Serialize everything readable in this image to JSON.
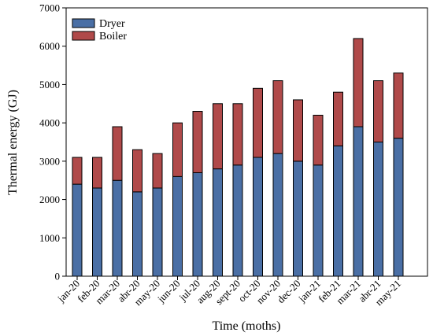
{
  "chart_data": {
    "type": "bar",
    "stacked": true,
    "categories": [
      "jan-20",
      "feb-20",
      "mar-20",
      "abr-20",
      "may-20",
      "jun-20",
      "jul-20",
      "aug-20",
      "sept-20",
      "oct-20",
      "nov-20",
      "dec-20",
      "jan-21",
      "feb-21",
      "mar-21",
      "abr-21",
      "may-21"
    ],
    "series": [
      {
        "name": "Dryer",
        "color": "#4a6fa5",
        "values": [
          2400,
          2300,
          2500,
          2200,
          2300,
          2600,
          2700,
          2800,
          2900,
          3100,
          3200,
          3000,
          2900,
          3400,
          3900,
          3500,
          3600
        ]
      },
      {
        "name": "Boiler",
        "color": "#b04a4a",
        "values": [
          700,
          800,
          1400,
          1100,
          900,
          1400,
          1600,
          1700,
          1600,
          1800,
          1900,
          1600,
          1300,
          1400,
          2300,
          1600,
          1700
        ]
      }
    ],
    "title": "",
    "xlabel": "Time (moths)",
    "ylabel": "Thermal energy (GJ)",
    "ylim": [
      0,
      7000
    ],
    "yticks": [
      0,
      1000,
      2000,
      3000,
      4000,
      5000,
      6000,
      7000
    ],
    "legend_position": "top-left",
    "grid": false
  }
}
